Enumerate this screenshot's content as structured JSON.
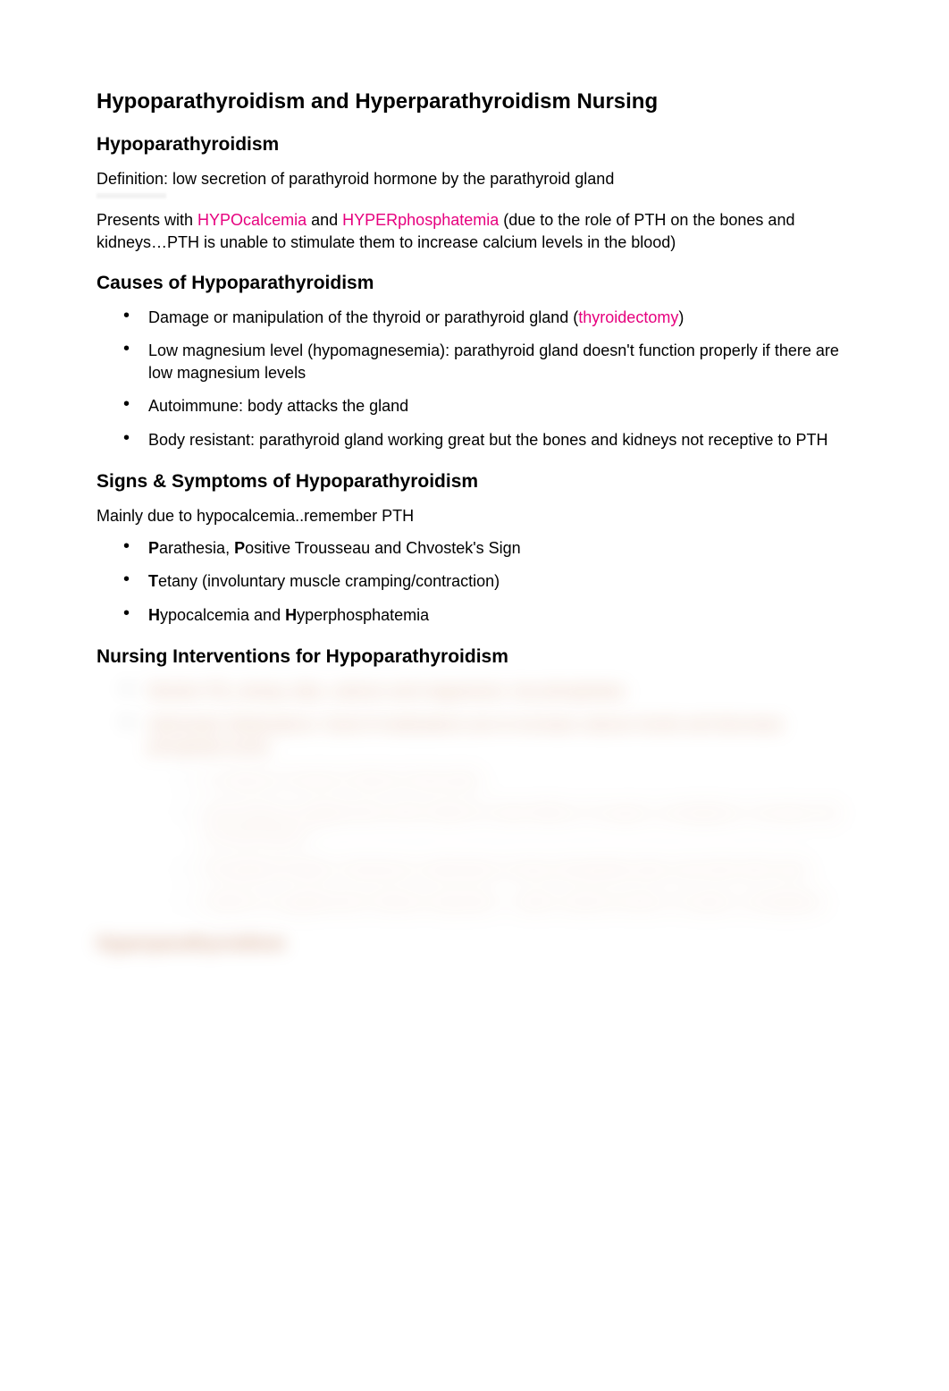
{
  "title": "Hypoparathyroidism and Hyperparathyroidism Nursing",
  "section1": {
    "heading": "Hypoparathyroidism",
    "definition": "Definition: low secretion of parathyroid hormone by the parathyroid gland",
    "presents_pre": "Presents with ",
    "link1": "HYPOcalcemia",
    "mid1": " and ",
    "link2": "HYPERphosphatemia",
    "presents_post": " (due to the role of PTH on the bones and kidneys…PTH is unable to stimulate them to increase calcium levels in the blood)"
  },
  "causes": {
    "heading": "Causes of Hypoparathyroidism",
    "items": [
      {
        "pre": "Damage or manipulation of the thyroid or parathyroid gland (",
        "link": "thyroidectomy",
        "post": ")"
      },
      {
        "text": "Low magnesium level (hypomagnesemia): parathyroid gland doesn't function properly if there are low magnesium levels"
      },
      {
        "text": "Autoimmune: body attacks the gland"
      },
      {
        "text": "Body resistant: parathyroid gland working great but the bones and kidneys not receptive to PTH"
      }
    ]
  },
  "symptoms": {
    "heading": "Signs & Symptoms of Hypoparathyroidism",
    "intro": "Mainly due to hypocalcemia..remember PTH",
    "items": [
      {
        "b1": "P",
        "t1": "arathesia, ",
        "b2": "P",
        "t2": "ositive Trousseau and Chvostek's Sign"
      },
      {
        "b1": "T",
        "t1": "etany (involuntary muscle cramping/contraction)"
      },
      {
        "b1": "H",
        "t1": "ypocalcemia and ",
        "b2": "H",
        "t2": "yperphosphatemia"
      }
    ]
  },
  "interventions": {
    "heading": "Nursing Interventions for Hypoparathyroidism",
    "blurred_items": [
      "Monitor PQ, airway, labs, calcium and magnesium, low phosphates",
      "Administer Medications: Goal of medications are to increase calcium levels and decrease phosphate levels",
      [
        "IV calcium if severe Calcium Gluconate",
        "Oral calcium supplements with vitamin D side effects: GI upset, constipation, increase risk of renal stones",
        "Phosphate binders: Aluminum carbonate to lower phosphate take med with with meal",
        "Vitamin D supplements Vitamin important – watch calcium levels, GI upset, constipation"
      ]
    ]
  },
  "section2_heading_blurred": "Hyperparathyroidism",
  "colors": {
    "link": "#e6007e",
    "text": "#000000",
    "bg": "#ffffff",
    "blurred": "#c97a4a"
  }
}
